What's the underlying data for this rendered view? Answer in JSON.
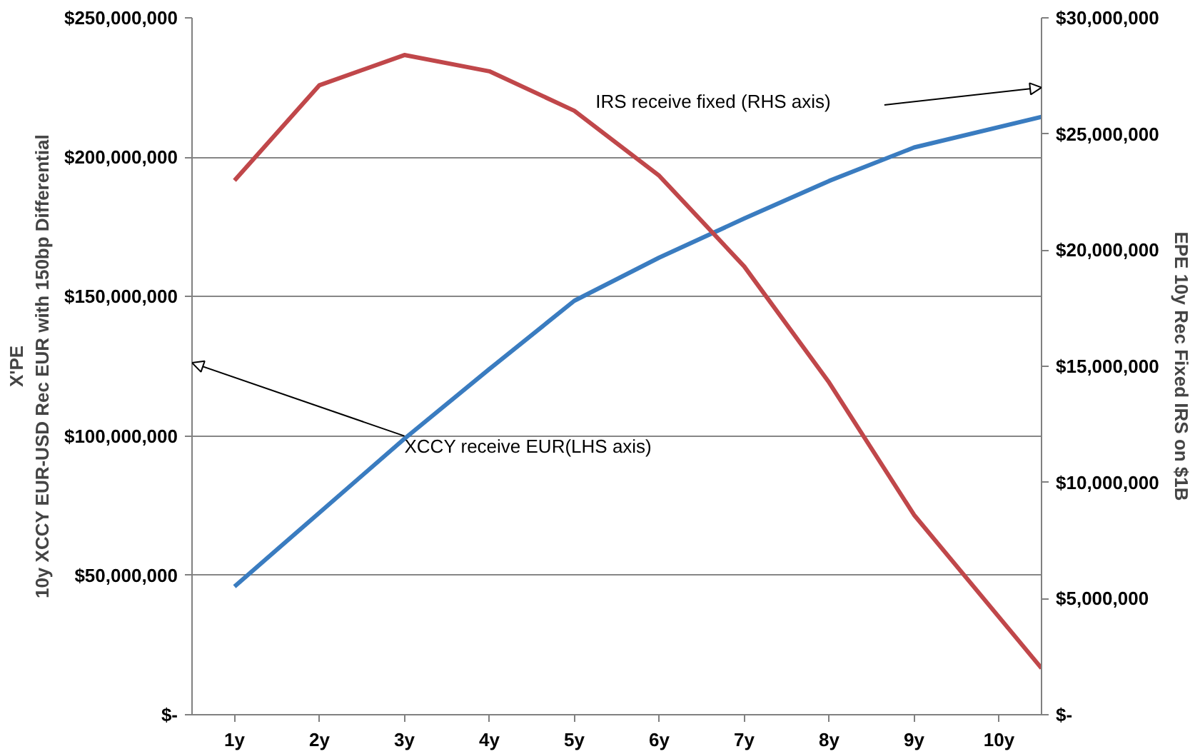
{
  "chart_data": {
    "type": "line",
    "ylabel": "X'PE\n10y XCCY EUR-USD Rec EUR with 150bp Differential",
    "y2label": "EPE 10y Rec Fixed IRS on $1B",
    "xlim": [
      0.5,
      10.5
    ],
    "xticks": [
      {
        "value": 1,
        "label": "1y"
      },
      {
        "value": 2,
        "label": "2y"
      },
      {
        "value": 3,
        "label": "3y"
      },
      {
        "value": 4,
        "label": "4y"
      },
      {
        "value": 5,
        "label": "5y"
      },
      {
        "value": 6,
        "label": "6y"
      },
      {
        "value": 7,
        "label": "7y"
      },
      {
        "value": 8,
        "label": "8y"
      },
      {
        "value": 9,
        "label": "9y"
      },
      {
        "value": 10,
        "label": "10y"
      }
    ],
    "x": [
      1,
      2,
      3,
      4,
      5,
      6,
      7,
      8,
      9,
      10.5
    ],
    "ylim": [
      0,
      250000000
    ],
    "yticks": [
      {
        "value": 0,
        "label": "$-"
      },
      {
        "value": 50000000,
        "label": "$50,000,000"
      },
      {
        "value": 100000000,
        "label": "$100,000,000"
      },
      {
        "value": 150000000,
        "label": "$150,000,000"
      },
      {
        "value": 200000000,
        "label": "$200,000,000"
      },
      {
        "value": 250000000,
        "label": "$250,000,000"
      }
    ],
    "y2lim": [
      0,
      30000000
    ],
    "y2ticks": [
      {
        "value": 0,
        "label": "$-"
      },
      {
        "value": 5000000,
        "label": "$5,000,000"
      },
      {
        "value": 10000000,
        "label": "$10,000,000"
      },
      {
        "value": 15000000,
        "label": "$15,000,000"
      },
      {
        "value": 20000000,
        "label": "$20,000,000"
      },
      {
        "value": 25000000,
        "label": "$25,000,000"
      },
      {
        "value": 30000000,
        "label": "$30,000,000"
      }
    ],
    "series": [
      {
        "color": "#3a7cc0",
        "axis": "y",
        "values": [
          46000000,
          72500000,
          99000000,
          124000000,
          148500000,
          164000000,
          178000000,
          191500000,
          203500000,
          214500000
        ]
      },
      {
        "color": "#c0474a",
        "axis": "y2",
        "values": [
          23000000,
          27100000,
          28400000,
          27700000,
          26000000,
          23200000,
          19300000,
          14300000,
          8600000,
          2000000
        ]
      }
    ],
    "annotations": [
      "IRS receive fixed (RHS axis)",
      "XCCY receive EUR(LHS axis)"
    ],
    "grid": "y",
    "marker": "none",
    "line_style": "solid"
  }
}
